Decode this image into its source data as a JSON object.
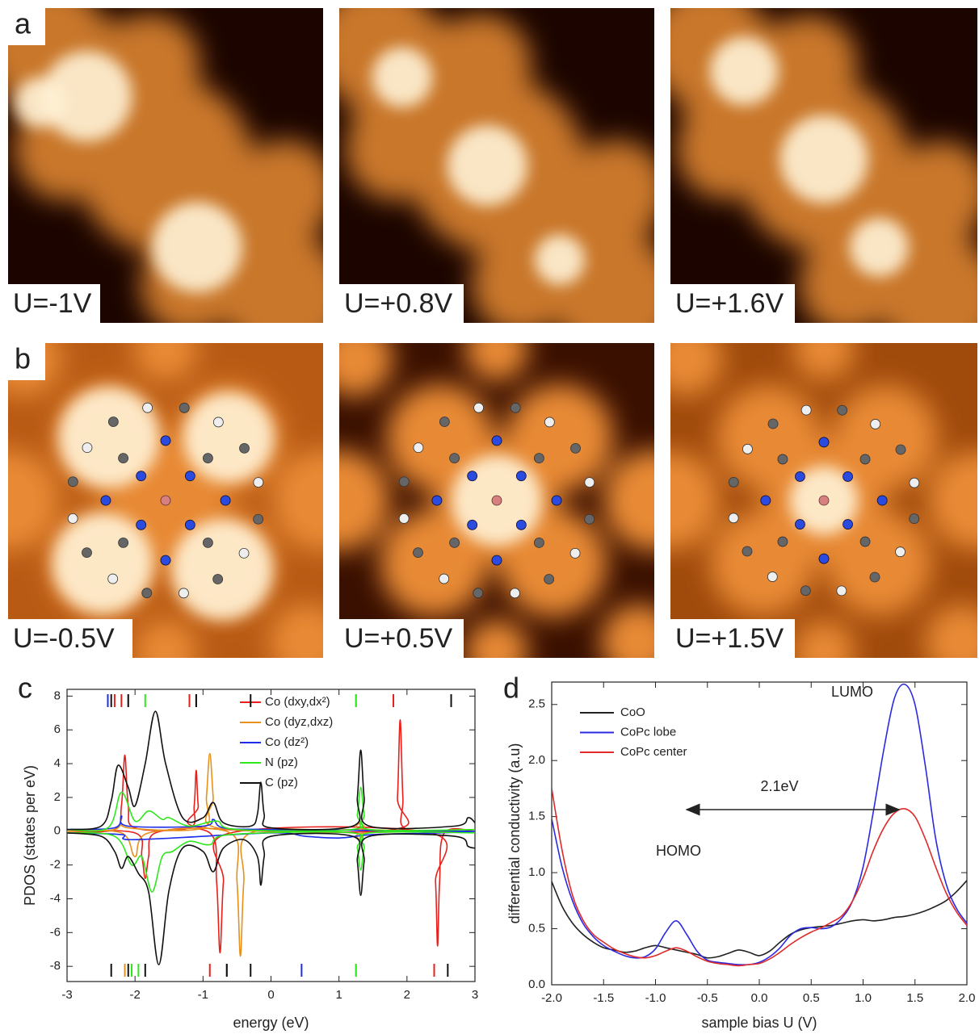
{
  "panels": [
    {
      "label": "a",
      "images": [
        "U=-1V",
        "U=+0.8V",
        "U=+1.6V"
      ]
    },
    {
      "label": "b",
      "images": [
        "U=-0.5V",
        "U=+0.5V",
        "U=+1.5V"
      ]
    }
  ],
  "chart_data": [
    {
      "type": "line",
      "panel_label": "c",
      "x_label": "energy (eV)",
      "y_label": "PDOS (states per eV)",
      "xlim": [
        -3,
        3
      ],
      "xticks": [
        -3,
        -2,
        -1,
        0,
        1,
        2,
        3
      ],
      "ylim": [
        -8.9,
        8.4
      ],
      "yticks": [
        -8,
        -6,
        -4,
        -2,
        0,
        2,
        4,
        6,
        8
      ],
      "series": [
        {
          "name": "Co (dxy,dx²)",
          "color": "#e8201c",
          "up": {
            "x": [
              -3,
              -2.3,
              -2.2,
              -2.15,
              -2.1,
              -2.0,
              -1.2,
              -1.13,
              -1.1,
              -1.07,
              -1.0,
              1.8,
              1.86,
              1.9,
              1.94,
              2.0,
              3
            ],
            "values": [
              0,
              0.1,
              1.5,
              4.5,
              1.5,
              0.2,
              0.2,
              1.5,
              3.6,
              1.5,
              0.2,
              0.1,
              2,
              6.6,
              2,
              0.1,
              0
            ]
          },
          "down": {
            "x": [
              -3,
              -2.0,
              -1.9,
              -1.85,
              -1.8,
              -1.7,
              -0.9,
              -0.8,
              -0.75,
              -0.7,
              -0.6,
              2.35,
              2.42,
              2.45,
              2.48,
              2.55,
              3
            ],
            "values": [
              0,
              -0.1,
              -1.5,
              -2.8,
              -1.5,
              -0.1,
              -0.1,
              -3,
              -7.2,
              -3,
              -0.1,
              -0.1,
              -3,
              -6.8,
              -3,
              -0.1,
              0
            ]
          },
          "levels_up": [
            -2.3,
            -2.2,
            -1.2,
            1.8
          ],
          "levels_down": [
            -2.05,
            -0.9,
            2.4
          ]
        },
        {
          "name": "Co (dyz,dxz)",
          "color": "#e8901c",
          "up": {
            "x": [
              -3,
              -2.3,
              -2.2,
              -2.1,
              -1.0,
              -0.95,
              -0.9,
              -0.85,
              -0.8,
              1.2,
              1.3,
              1.4,
              3
            ],
            "values": [
              0,
              0.1,
              0.8,
              0.2,
              0.2,
              2,
              4.6,
              2,
              0.2,
              0.1,
              0.5,
              0.1,
              0
            ]
          },
          "down": {
            "x": [
              -3,
              -2.2,
              -2.0,
              -1.8,
              -0.6,
              -0.5,
              -0.45,
              -0.4,
              -0.3,
              1.2,
              1.3,
              1.4,
              3
            ],
            "values": [
              0,
              -0.1,
              -1.5,
              -0.1,
              -0.1,
              -3,
              -7.4,
              -3,
              -0.1,
              -0.1,
              -0.5,
              -0.1,
              0
            ]
          },
          "levels_up": [
            -1.1,
            1.25
          ],
          "levels_down": [
            -2.15,
            -0.65,
            1.25
          ]
        },
        {
          "name": "Co (dz²)",
          "color": "#1c2ee8",
          "up": {
            "x": [
              -3,
              -2.3,
              -2.2,
              -2.1,
              -1.0,
              -0.85,
              -0.7,
              0,
              3
            ],
            "values": [
              0.1,
              0.2,
              0.9,
              0.3,
              0.3,
              0.7,
              0.2,
              0.1,
              0
            ]
          },
          "down": {
            "x": [
              -3,
              -2.2,
              -2,
              0,
              0.5,
              1.0,
              1.5,
              2.5,
              3
            ],
            "values": [
              -0.1,
              -0.2,
              -0.5,
              -0.1,
              -0.3,
              -0.4,
              -0.2,
              -0.1,
              0
            ]
          },
          "levels_up": [
            -2.4
          ],
          "levels_down": [
            0.45
          ]
        },
        {
          "name": "N (pz)",
          "color": "#2ee81c",
          "up": {
            "x": [
              -3,
              -2.4,
              -2.2,
              -2.0,
              -1.8,
              -1.6,
              -1.5,
              -1.2,
              -0.8,
              -0.5,
              1.2,
              1.27,
              1.32,
              1.37,
              1.45,
              3
            ],
            "values": [
              0.1,
              0.2,
              2.3,
              0.6,
              1.2,
              0.7,
              0.8,
              0.3,
              0.6,
              0.1,
              0.1,
              1,
              2.6,
              1,
              0.1,
              0.1
            ]
          },
          "down": {
            "x": [
              -3,
              -2.3,
              -2.05,
              -1.9,
              -1.75,
              -1.6,
              -1.45,
              -1.2,
              -0.9,
              -0.6,
              1.2,
              1.27,
              1.32,
              1.37,
              1.45,
              3
            ],
            "values": [
              -0.1,
              -0.3,
              -2.0,
              -1.5,
              -3.6,
              -1.5,
              -1.2,
              -0.6,
              -0.8,
              -0.2,
              -0.1,
              -1,
              -2.3,
              -1,
              -0.1,
              -0.1
            ]
          },
          "levels_up": [
            -2.1,
            -1.85,
            -1.1,
            1.25
          ],
          "levels_down": [
            -2.05,
            -1.95,
            -0.65,
            1.25
          ]
        },
        {
          "name": "C (pz)",
          "color": "#111111",
          "up": {
            "x": [
              -3,
              -2.5,
              -2.35,
              -2.25,
              -2.1,
              -2.0,
              -1.85,
              -1.7,
              -1.55,
              -1.3,
              -1.0,
              -0.85,
              -0.7,
              -0.3,
              -0.2,
              -0.15,
              -0.1,
              0,
              1.2,
              1.27,
              1.32,
              1.37,
              1.45,
              2.7,
              2.9,
              3
            ],
            "values": [
              0.1,
              0.3,
              1.8,
              3.9,
              2.6,
              1.5,
              4,
              7.1,
              4,
              0.8,
              0.8,
              1.7,
              0.5,
              0.3,
              1,
              2.9,
              1,
              0.2,
              0.3,
              2,
              4.8,
              2,
              0.3,
              0.3,
              0.8,
              0.5
            ]
          },
          "down": {
            "x": [
              -3,
              -2.5,
              -2.3,
              -2.2,
              -2.1,
              -1.95,
              -1.8,
              -1.65,
              -1.5,
              -1.3,
              -1.0,
              -0.85,
              -0.7,
              -0.4,
              -0.2,
              -0.15,
              -0.1,
              0,
              1.2,
              1.27,
              1.32,
              1.37,
              1.45,
              2.7,
              2.9,
              3
            ],
            "values": [
              -0.1,
              -0.3,
              -1.2,
              -2.2,
              -1.5,
              -2.5,
              -3.6,
              -7.9,
              -3.5,
              -1,
              -1.2,
              -2.4,
              -1,
              -0.5,
              -1.5,
              -3.2,
              -1.5,
              -0.3,
              -0.3,
              -1.8,
              -3.8,
              -1.8,
              -0.3,
              -0.3,
              -0.9,
              -1
            ]
          },
          "levels_up": [
            -2.35,
            -2.1,
            -1.1,
            -0.3,
            2.65
          ],
          "levels_down": [
            -2.35,
            -2.1,
            -1.85,
            -0.65,
            -0.3,
            2.6
          ]
        }
      ]
    },
    {
      "type": "line",
      "panel_label": "d",
      "x_label": "sample bias U (V)",
      "y_label": "differential conductivity (a.u)",
      "annotations": [
        "LUMO",
        "HOMO",
        "2.1eV"
      ],
      "xlim": [
        -2,
        2
      ],
      "xticks": [
        {
          "value": -2,
          "label": "-2.0"
        },
        -1.5,
        {
          "value": -1,
          "label": "-1.0"
        },
        -0.5,
        {
          "value": 0,
          "label": "0.0"
        },
        0.5,
        {
          "value": 1,
          "label": "1.0"
        },
        1.5,
        {
          "value": 2,
          "label": "2.0"
        }
      ],
      "ylim": [
        0,
        2.7
      ],
      "yticks": [
        {
          "value": 0,
          "label": "0.0"
        },
        0.5,
        {
          "value": 1,
          "label": "1.0"
        },
        1.5,
        {
          "value": 2,
          "label": "2.0"
        },
        2.5
      ],
      "x": [
        -2,
        -1.9,
        -1.8,
        -1.7,
        -1.6,
        -1.5,
        -1.4,
        -1.3,
        -1.2,
        -1.1,
        -1,
        -0.9,
        -0.8,
        -0.7,
        -0.6,
        -0.5,
        -0.4,
        -0.3,
        -0.2,
        -0.1,
        0,
        0.1,
        0.2,
        0.3,
        0.4,
        0.5,
        0.6,
        0.7,
        0.8,
        0.9,
        1,
        1.1,
        1.2,
        1.3,
        1.4,
        1.5,
        1.6,
        1.7,
        1.8,
        1.9,
        2
      ],
      "series": [
        {
          "name": "CoO",
          "color": "#222222",
          "values": [
            0.92,
            0.7,
            0.55,
            0.45,
            0.38,
            0.33,
            0.31,
            0.29,
            0.3,
            0.33,
            0.35,
            0.33,
            0.31,
            0.29,
            0.27,
            0.24,
            0.25,
            0.28,
            0.31,
            0.29,
            0.26,
            0.3,
            0.38,
            0.45,
            0.49,
            0.51,
            0.52,
            0.53,
            0.55,
            0.57,
            0.58,
            0.57,
            0.58,
            0.6,
            0.61,
            0.63,
            0.66,
            0.7,
            0.75,
            0.83,
            0.93
          ]
        },
        {
          "name": "CoPc lobe",
          "color": "#2a2ae0",
          "values": [
            1.48,
            1.05,
            0.75,
            0.55,
            0.43,
            0.35,
            0.3,
            0.26,
            0.24,
            0.25,
            0.32,
            0.47,
            0.57,
            0.45,
            0.3,
            0.22,
            0.2,
            0.19,
            0.18,
            0.18,
            0.2,
            0.25,
            0.33,
            0.44,
            0.5,
            0.51,
            0.5,
            0.52,
            0.6,
            0.75,
            1.05,
            1.55,
            2.1,
            2.55,
            2.68,
            2.5,
            1.95,
            1.3,
            0.9,
            0.68,
            0.55
          ]
        },
        {
          "name": "CoPc center",
          "color": "#e02a2a",
          "values": [
            1.75,
            1.2,
            0.8,
            0.58,
            0.45,
            0.38,
            0.32,
            0.28,
            0.25,
            0.24,
            0.26,
            0.3,
            0.33,
            0.3,
            0.25,
            0.21,
            0.19,
            0.18,
            0.17,
            0.18,
            0.19,
            0.23,
            0.29,
            0.36,
            0.42,
            0.47,
            0.51,
            0.56,
            0.62,
            0.75,
            0.95,
            1.2,
            1.4,
            1.53,
            1.57,
            1.5,
            1.3,
            1.05,
            0.82,
            0.65,
            0.53
          ]
        }
      ]
    }
  ]
}
